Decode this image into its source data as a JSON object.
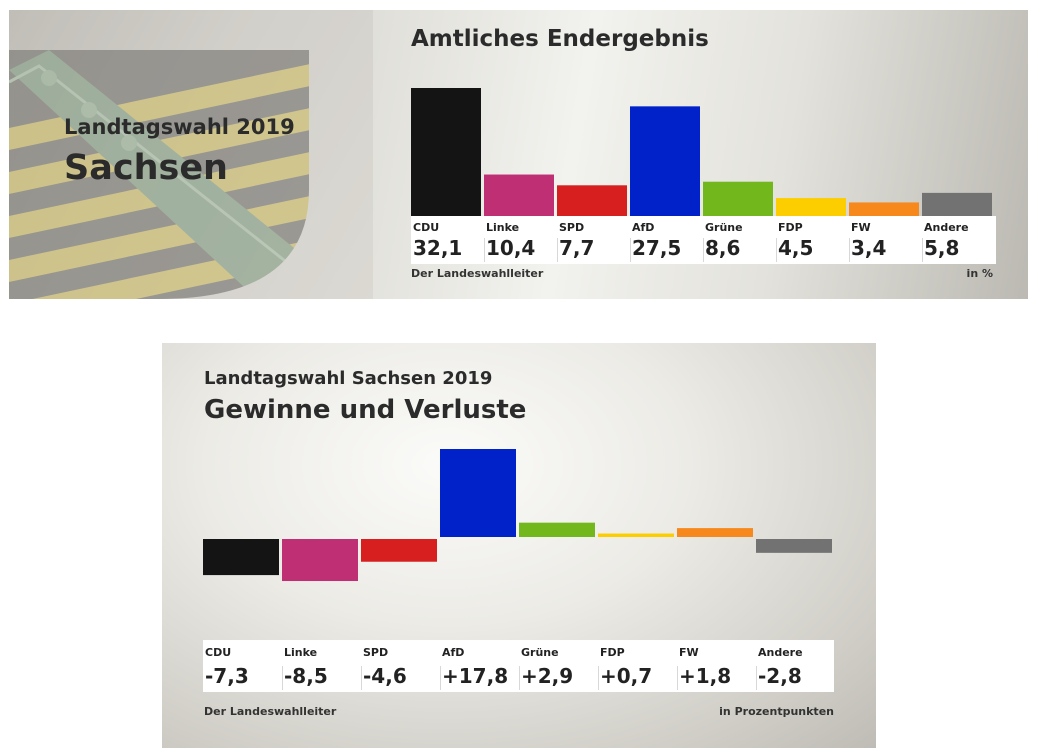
{
  "header": {
    "election_subtitle": "Landtagswahl 2019",
    "state_title": "Sachsen"
  },
  "colors": {
    "CDU": "#141414",
    "Linke": "#bf2f74",
    "SPD": "#d81f1f",
    "AfD": "#0022c8",
    "Grüne": "#72b81c",
    "FDP": "#fcce00",
    "FW": "#f7891c",
    "Andere": "#727272"
  },
  "chart_data": [
    {
      "type": "bar",
      "title": "Amtliches Endergebnis",
      "categories": [
        "CDU",
        "Linke",
        "SPD",
        "AfD",
        "Grüne",
        "FDP",
        "FW",
        "Andere"
      ],
      "values": [
        32.1,
        10.4,
        7.7,
        27.5,
        8.6,
        4.5,
        3.4,
        5.8
      ],
      "value_labels": [
        "32,1",
        "10,4",
        "7,7",
        "27,5",
        "8,6",
        "4,5",
        "3,4",
        "5,8"
      ],
      "ylim": [
        0,
        32.1
      ],
      "unit": "in %",
      "source": "Der Landeswahlleiter"
    },
    {
      "type": "bar",
      "subtitle": "Landtagswahl Sachsen 2019",
      "title": "Gewinne und Verluste",
      "categories": [
        "CDU",
        "Linke",
        "SPD",
        "AfD",
        "Grüne",
        "FDP",
        "FW",
        "Andere"
      ],
      "values": [
        -7.3,
        -8.5,
        -4.6,
        17.8,
        2.9,
        0.7,
        1.8,
        -2.8
      ],
      "value_labels": [
        "-7,3",
        "-8,5",
        "-4,6",
        "+17,8",
        "+2,9",
        "+0,7",
        "+1,8",
        "-2,8"
      ],
      "ylim": [
        -8.5,
        17.8
      ],
      "unit": "in Prozentpunkten",
      "source": "Der Landeswahlleiter"
    }
  ]
}
